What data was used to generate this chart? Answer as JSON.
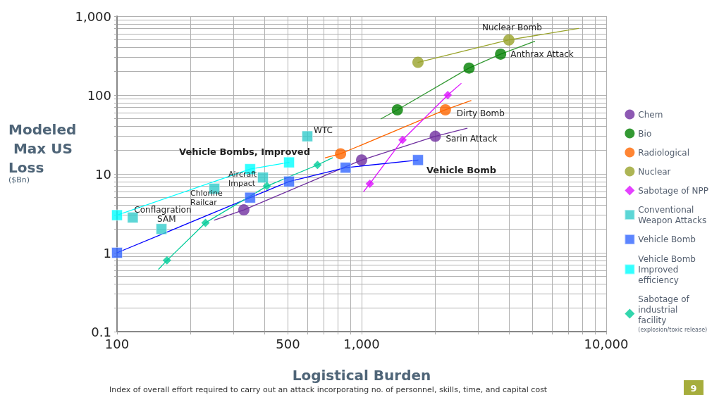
{
  "chart_data": {
    "type": "scatter",
    "xlabel": "Logistical Burden",
    "ylabel": "Modeled Max US Loss ($Bn)",
    "log": "xy",
    "grid": true,
    "legend": "right",
    "xlim": [
      100,
      10000
    ],
    "ylim": [
      0.1,
      1000
    ],
    "xticks": [
      100,
      {
        "value": 200,
        "label": null
      },
      {
        "value": 300,
        "label": null
      },
      {
        "value": 400,
        "label": null
      },
      500,
      {
        "value": 600,
        "label": null
      },
      {
        "value": 700,
        "label": null
      },
      {
        "value": 800,
        "label": null
      },
      {
        "value": 900,
        "label": null
      },
      {
        "value": 1000,
        "label": "1,000"
      },
      {
        "value": 2000,
        "label": null
      },
      {
        "value": 3000,
        "label": null
      },
      {
        "value": 4000,
        "label": null
      },
      {
        "value": 5000,
        "label": null
      },
      {
        "value": 6000,
        "label": null
      },
      {
        "value": 7000,
        "label": null
      },
      {
        "value": 8000,
        "label": null
      },
      {
        "value": 9000,
        "label": null
      },
      {
        "value": 10000,
        "label": "10,000"
      }
    ],
    "yticks": [
      0.1,
      {
        "value": 0.2,
        "label": null
      },
      {
        "value": 0.3,
        "label": null
      },
      {
        "value": 0.4,
        "label": null
      },
      {
        "value": 0.5,
        "label": null
      },
      {
        "value": 0.6,
        "label": null
      },
      {
        "value": 0.7,
        "label": null
      },
      {
        "value": 0.8,
        "label": null
      },
      {
        "value": 0.9,
        "label": null
      },
      1,
      {
        "value": 2,
        "label": null
      },
      {
        "value": 3,
        "label": null
      },
      {
        "value": 4,
        "label": null
      },
      {
        "value": 5,
        "label": null
      },
      {
        "value": 6,
        "label": null
      },
      {
        "value": 7,
        "label": null
      },
      {
        "value": 8,
        "label": null
      },
      {
        "value": 9,
        "label": null
      },
      10,
      {
        "value": 20,
        "label": null
      },
      {
        "value": 30,
        "label": null
      },
      {
        "value": 40,
        "label": null
      },
      {
        "value": 50,
        "label": null
      },
      {
        "value": 60,
        "label": null
      },
      {
        "value": 70,
        "label": null
      },
      {
        "value": 80,
        "label": null
      },
      {
        "value": 90,
        "label": null
      },
      100,
      {
        "value": 200,
        "label": null
      },
      {
        "value": 300,
        "label": null
      },
      {
        "value": 400,
        "label": null
      },
      {
        "value": 500,
        "label": null
      },
      {
        "value": 600,
        "label": null
      },
      {
        "value": 700,
        "label": null
      },
      {
        "value": 800,
        "label": null
      },
      {
        "value": 900,
        "label": null
      },
      {
        "value": 1000,
        "label": "1,000"
      }
    ],
    "series": [
      {
        "name": "Chem",
        "color": "#7030a0",
        "marker": "circle",
        "x": [
          330,
          1000,
          2000
        ],
        "values": [
          3.5,
          15,
          30
        ]
      },
      {
        "name": "Bio",
        "color": "#008000",
        "marker": "circle",
        "x": [
          1400,
          2750,
          3700
        ],
        "values": [
          65,
          220,
          330
        ]
      },
      {
        "name": "Radiological",
        "color": "#ff6600",
        "marker": "circle",
        "x": [
          820,
          2200
        ],
        "values": [
          18,
          65
        ]
      },
      {
        "name": "Nuclear",
        "color": "#99a32a",
        "marker": "circle",
        "x": [
          1700,
          4000
        ],
        "values": [
          260,
          500
        ]
      },
      {
        "name": "Sabotage of NPP",
        "color": "#dd11ff",
        "marker": "diamond",
        "x": [
          1080,
          1470,
          2250
        ],
        "values": [
          7.5,
          27,
          100
        ]
      },
      {
        "name": "Conventional Weapon Attacks",
        "color": "#33cccc",
        "marker": "square",
        "x": [
          116,
          152,
          250,
          395,
          600
        ],
        "values": [
          2.8,
          2,
          6.5,
          9,
          30
        ]
      },
      {
        "name": "Vehicle Bomb",
        "color": "#3366ff",
        "marker": "square",
        "x": [
          100,
          350,
          505,
          860,
          1700
        ],
        "values": [
          1,
          5,
          8,
          12,
          15
        ]
      },
      {
        "name": "Vehicle Bomb Improved efficiency",
        "color": "#00ffff",
        "marker": "square",
        "x": [
          100,
          350,
          505
        ],
        "values": [
          3,
          11.5,
          14
        ]
      },
      {
        "name": "Sabotage of industrial facility (explosion/toxic release)",
        "color": "#00cc99",
        "marker": "diamond",
        "x": [
          160,
          230,
          410,
          660
        ],
        "values": [
          0.8,
          2.4,
          7,
          13
        ]
      },
      {
        "type": "line",
        "color": "#7030a0",
        "marker": "none",
        "x": [
          250,
          330,
          1000,
          2000,
          2700
        ],
        "values": [
          2.6,
          3.5,
          15,
          30,
          38
        ]
      },
      {
        "type": "line",
        "color": "#339933",
        "marker": "none",
        "x": [
          1200,
          1400,
          2750,
          3700,
          5100
        ],
        "values": [
          50,
          65,
          220,
          330,
          480
        ]
      },
      {
        "type": "line",
        "color": "#ff6600",
        "marker": "none",
        "x": [
          710,
          820,
          2200,
          2800
        ],
        "values": [
          16,
          18,
          65,
          85
        ]
      },
      {
        "type": "line",
        "color": "#99a32a",
        "marker": "none",
        "x": [
          1700,
          4000,
          7700
        ],
        "values": [
          260,
          500,
          700
        ]
      },
      {
        "type": "line",
        "color": "#dd11ff",
        "marker": "none",
        "x": [
          1020,
          1080,
          1470,
          2250,
          2550
        ],
        "values": [
          6,
          7.5,
          27,
          100,
          140
        ]
      },
      {
        "type": "line",
        "color": "#0000ff",
        "marker": "none",
        "x": [
          100,
          350,
          505,
          860,
          1700
        ],
        "values": [
          1,
          5,
          8,
          12,
          15
        ]
      },
      {
        "type": "line",
        "color": "#00ffff",
        "marker": "none",
        "x": [
          100,
          350,
          505
        ],
        "values": [
          3,
          11.5,
          14
        ]
      },
      {
        "type": "line",
        "color": "#00cc99",
        "marker": "none",
        "x": [
          148,
          160,
          230,
          410,
          660,
          760
        ],
        "values": [
          0.62,
          0.8,
          2.4,
          7,
          13,
          16
        ]
      }
    ],
    "annotations": [
      {
        "text": "Nuclear Bomb",
        "x": 4000,
        "y": 500
      },
      {
        "text": "Anthrax Attack",
        "x": 3700,
        "y": 330
      },
      {
        "text": "Dirty Bomb",
        "x": 2200,
        "y": 65
      },
      {
        "text": "Sarin Attack",
        "x": 2000,
        "y": 30
      },
      {
        "text": "Vehicle Bomb",
        "x": 1700,
        "y": 15
      },
      {
        "text": "Vehicle Bombs, Improved",
        "x": 505,
        "y": 14
      },
      {
        "text": "WTC",
        "x": 600,
        "y": 30
      },
      {
        "text": "Aircraft Impact",
        "x": 395,
        "y": 9
      },
      {
        "text": "Chlorine Railcar",
        "x": 250,
        "y": 6.5
      },
      {
        "text": "Conflagration",
        "x": 116,
        "y": 2.8
      },
      {
        "text": "SAM",
        "x": 152,
        "y": 2
      },
      "Index of overall effort required to carry out an attack incorporating no. of personnel, skills, time, and capital cost",
      "9"
    ]
  }
}
